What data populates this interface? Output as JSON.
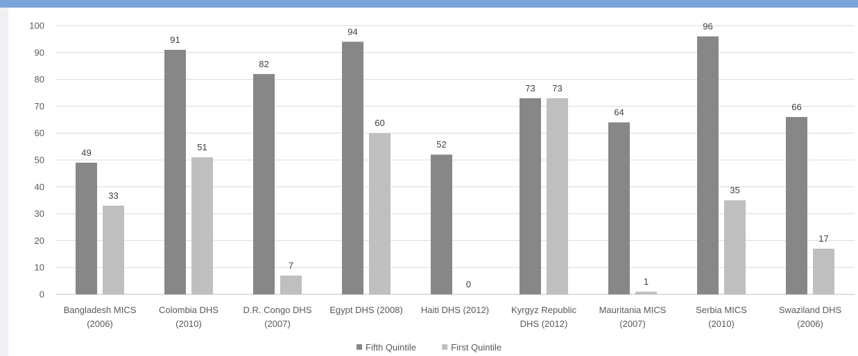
{
  "chart_data": {
    "type": "bar",
    "categories": [
      [
        "Bangladesh MICS",
        "(2006)"
      ],
      [
        "Colombia DHS",
        "(2010)"
      ],
      [
        "D.R. Congo DHS",
        "(2007)"
      ],
      [
        "Egypt DHS (2008)"
      ],
      [
        "Haiti DHS (2012)"
      ],
      [
        "Kyrgyz Republic",
        "DHS (2012)"
      ],
      [
        "Mauritania MICS",
        "(2007)"
      ],
      [
        "Serbia MICS",
        "(2010)"
      ],
      [
        "Swaziland DHS",
        "(2006)"
      ]
    ],
    "series": [
      {
        "name": "Fifth Quintile",
        "color": "#878787",
        "values": [
          49,
          91,
          82,
          94,
          52,
          73,
          64,
          96,
          66
        ]
      },
      {
        "name": "First Quintile",
        "color": "#bfbfbf",
        "values": [
          33,
          51,
          7,
          60,
          0,
          73,
          1,
          35,
          17
        ]
      }
    ],
    "ylim": [
      0,
      100
    ],
    "yticks": [
      0,
      10,
      20,
      30,
      40,
      50,
      60,
      70,
      80,
      90,
      100
    ],
    "grid": true,
    "legend_position": "bottom-center",
    "title": "",
    "xlabel": "",
    "ylabel": ""
  }
}
